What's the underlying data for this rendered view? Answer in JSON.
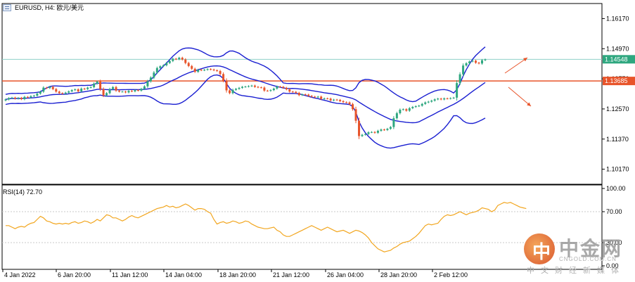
{
  "header": {
    "symbol_label": "EURUSD, H4:  欧元/美元",
    "icon": "symbol-icon"
  },
  "watermark": {
    "logo_char": "中",
    "name": "中金网",
    "url": "CNGOLD.COM.CN",
    "subtitle": "中文财经新媒体"
  },
  "colors": {
    "bull": "#2ea77f",
    "bear": "#e8542a",
    "band": "#1a1fd1",
    "support": "#e8542a",
    "current": "#8fd0c8",
    "rsi": "#f2a61f",
    "grid": "#c8c8c8"
  },
  "price_labels": {
    "current": "1.14548",
    "support": "1.13685"
  },
  "chart_data": [
    {
      "type": "candlestick",
      "y_ticks": [
        "1.16170",
        "1.14970",
        "1.13770",
        "1.12570",
        "1.11370",
        "1.10170"
      ],
      "ylim": [
        1.0957,
        1.1677
      ],
      "x_ticks": [
        "4 Jan 2022",
        "6 Jan 20:00",
        "11 Jan 12:00",
        "14 Jan 04:00",
        "18 Jan 20:00",
        "21 Jan 12:00",
        "26 Jan 04:00",
        "28 Jan 20:00",
        "2 Feb 12:00"
      ],
      "levels": {
        "current": 1.14548,
        "support": 1.13685
      },
      "close": [
        1.1295,
        1.13,
        1.1302,
        1.1298,
        1.1301,
        1.1296,
        1.1305,
        1.1303,
        1.1308,
        1.131,
        1.1318,
        1.1326,
        1.1342,
        1.134,
        1.1345,
        1.1336,
        1.1326,
        1.132,
        1.1318,
        1.1322,
        1.1327,
        1.1332,
        1.1335,
        1.1327,
        1.1338,
        1.1336,
        1.1342,
        1.1344,
        1.1358,
        1.1366,
        1.1336,
        1.1311,
        1.132,
        1.1336,
        1.1344,
        1.133,
        1.1326,
        1.1326,
        1.1323,
        1.1329,
        1.1327,
        1.1332,
        1.133,
        1.1337,
        1.1347,
        1.1367,
        1.1382,
        1.1402,
        1.142,
        1.1427,
        1.1431,
        1.144,
        1.1448,
        1.1457,
        1.1455,
        1.1461,
        1.1454,
        1.144,
        1.1428,
        1.1417,
        1.1405,
        1.1413,
        1.1411,
        1.1413,
        1.1416,
        1.1414,
        1.1411,
        1.1408,
        1.1396,
        1.137,
        1.1331,
        1.132,
        1.1333,
        1.1337,
        1.1341,
        1.1345,
        1.1346,
        1.1348,
        1.135,
        1.1345,
        1.1343,
        1.1342,
        1.133,
        1.1329,
        1.1332,
        1.1338,
        1.1346,
        1.1345,
        1.1341,
        1.1335,
        1.1326,
        1.1325,
        1.1321,
        1.1312,
        1.1315,
        1.1314,
        1.1309,
        1.1306,
        1.1304,
        1.1306,
        1.1297,
        1.1299,
        1.1298,
        1.1291,
        1.1294,
        1.1293,
        1.1288,
        1.1284,
        1.1283,
        1.1276,
        1.1256,
        1.121,
        1.1149,
        1.1154,
        1.1157,
        1.1164,
        1.1165,
        1.1162,
        1.117,
        1.1175,
        1.1173,
        1.1178,
        1.1185,
        1.122,
        1.124,
        1.1254,
        1.1256,
        1.125,
        1.126,
        1.1265,
        1.1268,
        1.127,
        1.1277,
        1.1283,
        1.1286,
        1.129,
        1.1295,
        1.1298,
        1.1295,
        1.1299,
        1.1298,
        1.13,
        1.1302,
        1.136,
        1.1395,
        1.143,
        1.1439,
        1.1446,
        1.1449,
        1.1441,
        1.1438,
        1.1451,
        1.1454
      ]
    },
    {
      "type": "line",
      "title": "RSI(14) 72.70",
      "ylim": [
        0,
        100
      ],
      "y_ticks": [
        "100.00",
        "70.00",
        "30.00",
        "0.00"
      ],
      "levels": [
        70,
        30
      ],
      "values": [
        52,
        52,
        50,
        48,
        50,
        51,
        50,
        53,
        55,
        56,
        60,
        64,
        62,
        58,
        57,
        55,
        54,
        55,
        54,
        55,
        54,
        56,
        57,
        55,
        56,
        58,
        57,
        55,
        57,
        60,
        58,
        62,
        66,
        65,
        62,
        62,
        60,
        58,
        60,
        63,
        65,
        63,
        62,
        64,
        66,
        68,
        70,
        72,
        74,
        75,
        76,
        78,
        76,
        77,
        75,
        76,
        78,
        80,
        78,
        75,
        72,
        74,
        74,
        73,
        70,
        68,
        60,
        54,
        56,
        57,
        55,
        56,
        58,
        57,
        55,
        56,
        58,
        57,
        54,
        52,
        50,
        49,
        48,
        48,
        49,
        50,
        46,
        44,
        40,
        38,
        38,
        40,
        42,
        44,
        46,
        48,
        50,
        52,
        50,
        48,
        46,
        48,
        50,
        48,
        46,
        44,
        45,
        46,
        44,
        42,
        44,
        46,
        45,
        43,
        40,
        36,
        30,
        26,
        22,
        20,
        18,
        19,
        20,
        23,
        25,
        28,
        30,
        31,
        32,
        35,
        38,
        42,
        47,
        52,
        54,
        53,
        54,
        55,
        60,
        64,
        66,
        65,
        66,
        68,
        70,
        68,
        66,
        68,
        69,
        70,
        72,
        75,
        74,
        73,
        70,
        72,
        78,
        80,
        82,
        81,
        82,
        80,
        78,
        76,
        75,
        74
      ]
    }
  ]
}
